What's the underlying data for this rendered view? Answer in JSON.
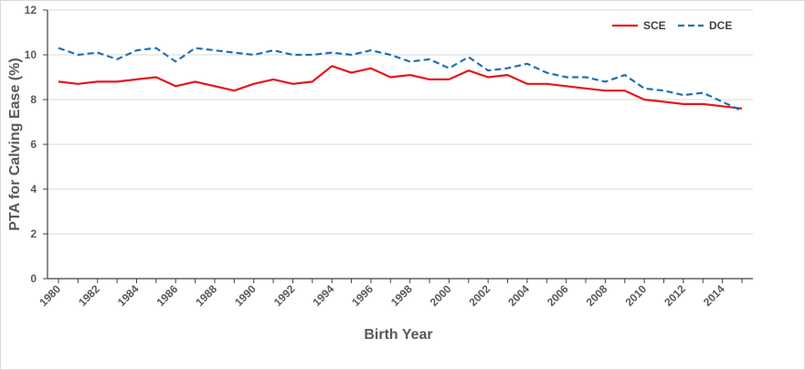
{
  "chart_data": {
    "type": "line",
    "title": "",
    "xlabel": "Birth Year",
    "ylabel": "PTA for Calving Ease (%)",
    "xlim": [
      1980,
      2015
    ],
    "ylim": [
      0,
      12
    ],
    "yticks": [
      0,
      2,
      4,
      6,
      8,
      10,
      12
    ],
    "xticks": [
      1980,
      1982,
      1984,
      1986,
      1988,
      1990,
      1992,
      1994,
      1996,
      1998,
      2000,
      2002,
      2004,
      2006,
      2008,
      2010,
      2012,
      2014
    ],
    "grid": "horizontal",
    "legend_position": "top-right",
    "x": [
      1980,
      1981,
      1982,
      1983,
      1984,
      1985,
      1986,
      1987,
      1988,
      1989,
      1990,
      1991,
      1992,
      1993,
      1994,
      1995,
      1996,
      1997,
      1998,
      1999,
      2000,
      2001,
      2002,
      2003,
      2004,
      2005,
      2006,
      2007,
      2008,
      2009,
      2010,
      2011,
      2012,
      2013,
      2014,
      2015
    ],
    "series": [
      {
        "name": "SCE",
        "color": "#e8141b",
        "dash": "solid",
        "values": [
          8.8,
          8.7,
          8.8,
          8.8,
          8.9,
          9.0,
          8.6,
          8.8,
          8.6,
          8.4,
          8.7,
          8.9,
          8.7,
          8.8,
          9.5,
          9.2,
          9.4,
          9.0,
          9.1,
          8.9,
          8.9,
          9.3,
          9.0,
          9.1,
          8.7,
          8.7,
          8.6,
          8.5,
          8.4,
          8.4,
          8.0,
          7.9,
          7.8,
          7.8,
          7.7,
          7.6
        ]
      },
      {
        "name": "DCE",
        "color": "#1f6fb4",
        "dash": "dashed",
        "values": [
          10.3,
          10.0,
          10.1,
          9.8,
          10.2,
          10.3,
          9.7,
          10.3,
          10.2,
          10.1,
          10.0,
          10.2,
          10.0,
          10.0,
          10.1,
          10.0,
          10.2,
          10.0,
          9.7,
          9.8,
          9.4,
          9.9,
          9.3,
          9.4,
          9.6,
          9.2,
          9.0,
          9.0,
          8.8,
          9.1,
          8.5,
          8.4,
          8.2,
          8.3,
          7.9,
          7.5
        ]
      }
    ]
  }
}
